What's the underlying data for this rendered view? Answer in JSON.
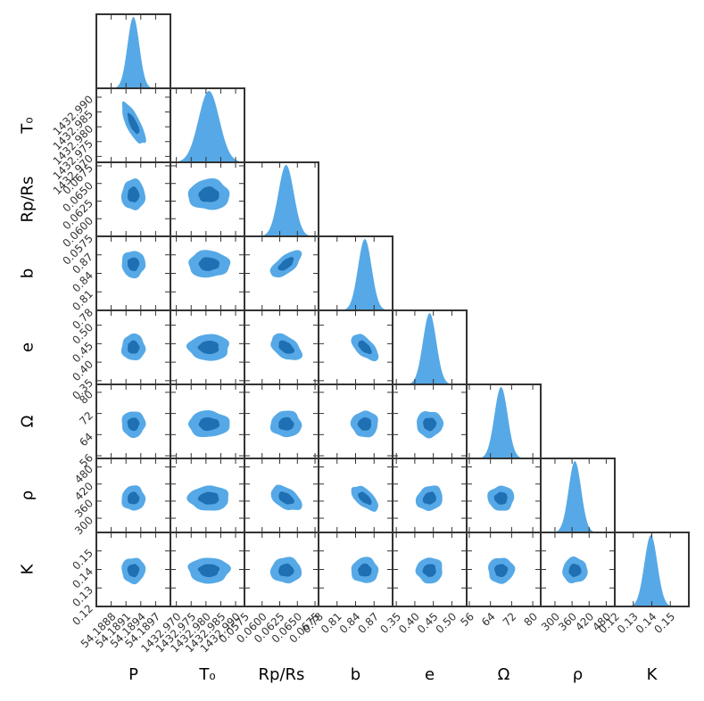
{
  "chart_data": {
    "type": "corner",
    "colors": {
      "outer": "#56a9e6",
      "inner": "#1f6fb3",
      "hist": "#56a9e6",
      "frame": "#333333"
    },
    "params": [
      {
        "name": "P",
        "label": "P",
        "mean": 54.18925,
        "sigma": 0.00012,
        "range": [
          54.1885,
          54.19
        ],
        "ticks": [
          54.1888,
          54.1891,
          54.1894,
          54.1897
        ],
        "tick_labels": [
          "54.1888",
          "54.1891",
          "54.1894",
          "54.1897"
        ]
      },
      {
        "name": "T0",
        "label": "T₀",
        "mean": 1432.981,
        "sigma": 0.0035,
        "range": [
          1432.968,
          1432.993
        ],
        "ticks": [
          1432.97,
          1432.975,
          1432.98,
          1432.985,
          1432.99
        ],
        "tick_labels": [
          "1432.970",
          "1432.975",
          "1432.980",
          "1432.985",
          "1432.990"
        ]
      },
      {
        "name": "RpRs",
        "label": "Rp/Rs",
        "mean": 0.0634,
        "sigma": 0.0011,
        "range": [
          0.0575,
          0.068
        ],
        "ticks": [
          0.0575,
          0.06,
          0.0625,
          0.065,
          0.0675
        ],
        "tick_labels": [
          "0.0575",
          "0.0600",
          "0.0625",
          "0.0650",
          "0.0675"
        ]
      },
      {
        "name": "b",
        "label": "b",
        "mean": 0.855,
        "sigma": 0.011,
        "range": [
          0.78,
          0.9
        ],
        "ticks": [
          0.78,
          0.81,
          0.84,
          0.87
        ],
        "tick_labels": [
          "0.78",
          "0.81",
          "0.84",
          "0.87"
        ]
      },
      {
        "name": "e",
        "label": "e",
        "mean": 0.44,
        "sigma": 0.018,
        "range": [
          0.34,
          0.54
        ],
        "ticks": [
          0.35,
          0.4,
          0.45,
          0.5
        ],
        "tick_labels": [
          "0.35",
          "0.40",
          "0.45",
          "0.50"
        ]
      },
      {
        "name": "Omega",
        "label": "Ω",
        "mean": 68,
        "sigma": 2.5,
        "range": [
          55,
          83
        ],
        "ticks": [
          56,
          64,
          72,
          80
        ],
        "tick_labels": [
          "56",
          "64",
          "72",
          "80"
        ]
      },
      {
        "name": "rho",
        "label": "ρ",
        "mean": 370,
        "sigma": 22,
        "range": [
          250,
          510
        ],
        "ticks": [
          300,
          360,
          420,
          480
        ],
        "tick_labels": [
          "300",
          "360",
          "420",
          "480"
        ]
      },
      {
        "name": "K",
        "label": "K",
        "mean": 0.1395,
        "sigma": 0.0035,
        "range": [
          0.12,
          0.16
        ],
        "ticks": [
          0.12,
          0.13,
          0.14,
          0.15
        ],
        "tick_labels": [
          "0.12",
          "0.13",
          "0.14",
          "0.15"
        ]
      }
    ],
    "correlations": {
      "P-T0": -0.75,
      "RpRs-b": 0.65,
      "RpRs-e": -0.45,
      "b-e": -0.6,
      "RpRs-rho": -0.45,
      "b-rho": -0.6,
      "e-rho": 0.15
    },
    "contour_levels_sigma": [
      1.0,
      2.0
    ]
  }
}
